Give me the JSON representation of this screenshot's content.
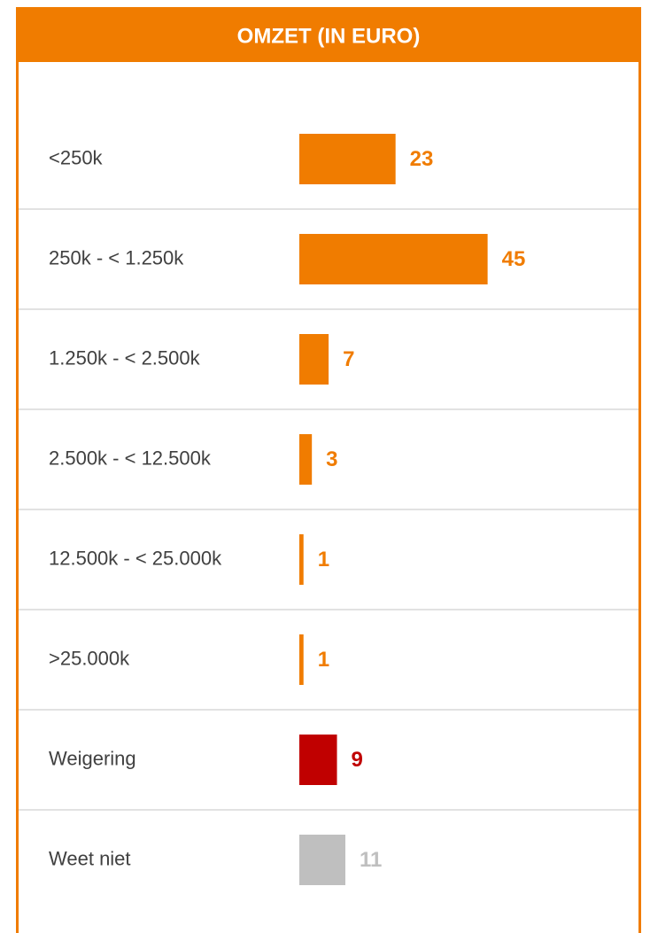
{
  "chart_data": {
    "type": "bar",
    "orientation": "horizontal",
    "title": "OMZET (IN EURO)",
    "categories": [
      "<250k",
      "250k - < 1.250k",
      "1.250k - < 2.500k",
      "2.500k - < 12.500k",
      "12.500k - < 25.000k",
      ">25.000k",
      "Weigering",
      "Weet niet"
    ],
    "values": [
      23,
      45,
      7,
      3,
      1,
      1,
      9,
      11
    ],
    "colors": [
      "#f07c00",
      "#f07c00",
      "#f07c00",
      "#f07c00",
      "#f07c00",
      "#f07c00",
      "#c00000",
      "#bfbfbf"
    ],
    "xlim": [
      0,
      80
    ]
  }
}
